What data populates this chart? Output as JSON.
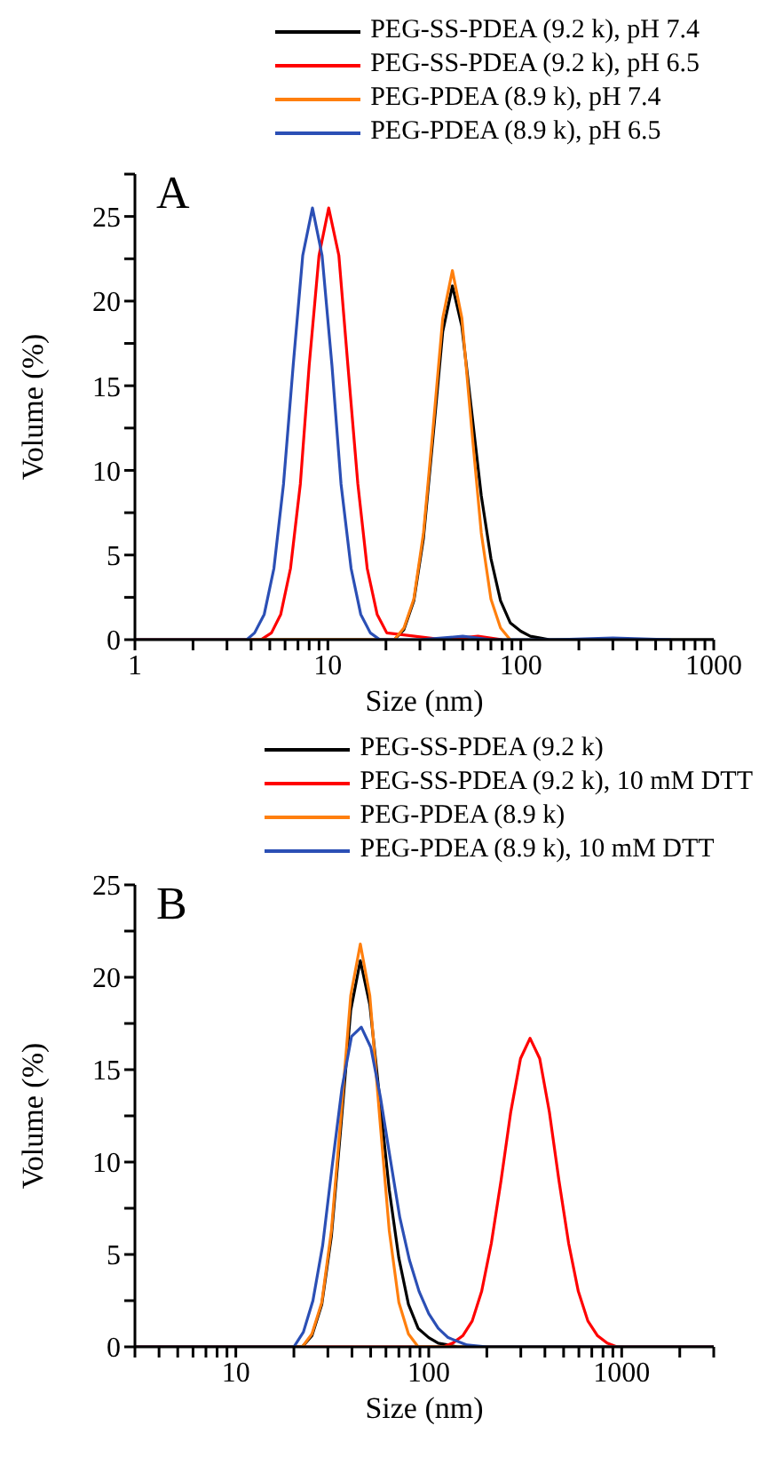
{
  "chart_data": [
    {
      "type": "line",
      "xlabel": "Size (nm)",
      "ylabel": "Volume (%)",
      "annotations": [
        "A"
      ],
      "log": "x",
      "marker": "none",
      "line_style": "solid",
      "legend": "top",
      "xlim": [
        1,
        1000
      ],
      "ylim": [
        0,
        27.5
      ],
      "xticks": [
        1,
        {
          "value": 2,
          "label": null
        },
        {
          "value": 3,
          "label": null
        },
        {
          "value": 4,
          "label": null
        },
        {
          "value": 5,
          "label": null
        },
        {
          "value": 6,
          "label": null
        },
        {
          "value": 7,
          "label": null
        },
        {
          "value": 8,
          "label": null
        },
        {
          "value": 9,
          "label": null
        },
        10,
        {
          "value": 20,
          "label": null
        },
        {
          "value": 30,
          "label": null
        },
        {
          "value": 40,
          "label": null
        },
        {
          "value": 50,
          "label": null
        },
        {
          "value": 60,
          "label": null
        },
        {
          "value": 70,
          "label": null
        },
        {
          "value": 80,
          "label": null
        },
        {
          "value": 90,
          "label": null
        },
        100,
        {
          "value": 200,
          "label": null
        },
        {
          "value": 300,
          "label": null
        },
        {
          "value": 400,
          "label": null
        },
        {
          "value": 500,
          "label": null
        },
        {
          "value": 600,
          "label": null
        },
        {
          "value": 700,
          "label": null
        },
        {
          "value": 800,
          "label": null
        },
        {
          "value": 900,
          "label": null
        },
        1000
      ],
      "yticks": [
        0,
        {
          "value": 2.5,
          "label": null
        },
        5,
        {
          "value": 7.5,
          "label": null
        },
        10,
        {
          "value": 12.5,
          "label": null
        },
        15,
        {
          "value": 17.5,
          "label": null
        },
        20,
        {
          "value": 22.5,
          "label": null
        },
        25,
        {
          "value": 27.5,
          "label": null
        }
      ],
      "series": [
        {
          "name": "PEG-SS-PDEA (9.2 k), pH 7.4",
          "color": "#000000",
          "x": [
            1,
            20,
            22.1,
            24.8,
            27.9,
            31.3,
            35.1,
            39.4,
            44.2,
            49.5,
            55.6,
            62.4,
            70.0,
            78.5,
            88.1,
            100,
            112,
            126,
            141,
            1000
          ],
          "values": [
            0,
            0,
            0,
            0.6,
            2.3,
            6.0,
            12.0,
            18.2,
            20.9,
            18.5,
            13.5,
            8.5,
            4.8,
            2.3,
            1.0,
            0.5,
            0.2,
            0.1,
            0,
            0
          ]
        },
        {
          "name": "PEG-SS-PDEA (9.2 k), pH 6.5",
          "color": "#ff0000",
          "x": [
            1,
            4.5,
            5.1,
            5.7,
            6.4,
            7.2,
            8.0,
            9.0,
            10.1,
            11.4,
            12.7,
            14.3,
            16.0,
            18.0,
            20.2,
            40,
            60,
            80
          ],
          "values": [
            0,
            0,
            0.4,
            1.5,
            4.2,
            9.2,
            16.2,
            22.7,
            25.5,
            22.7,
            16.2,
            9.2,
            4.2,
            1.5,
            0.4,
            0,
            0.2,
            0
          ]
        },
        {
          "name": "PEG-PDEA (8.9 k), pH 7.4",
          "color": "#ff7f0e",
          "x": [
            1,
            22.1,
            24.8,
            27.9,
            31.3,
            35.1,
            39.4,
            44.2,
            49.5,
            55.6,
            62.4,
            70.0,
            78.5,
            88.1
          ],
          "values": [
            0,
            0,
            0.7,
            2.4,
            6.3,
            12.5,
            19.0,
            21.8,
            19.0,
            12.5,
            6.3,
            2.4,
            0.7,
            0
          ]
        },
        {
          "name": "PEG-PDEA (8.9 k), pH 6.5",
          "color": "#2b4fb5",
          "x": [
            1,
            3.8,
            4.17,
            4.68,
            5.25,
            5.89,
            6.61,
            7.41,
            8.32,
            9.33,
            10.5,
            11.7,
            13.2,
            14.8,
            16.6,
            18.6,
            30,
            50,
            70,
            150,
            300,
            600
          ],
          "values": [
            0,
            0,
            0.4,
            1.5,
            4.2,
            9.2,
            16.2,
            22.7,
            25.5,
            22.7,
            16.2,
            9.2,
            4.2,
            1.5,
            0.4,
            0,
            0,
            0.2,
            0,
            0,
            0.1,
            0
          ]
        }
      ]
    },
    {
      "type": "line",
      "xlabel": "Size (nm)",
      "ylabel": "Volume (%)",
      "annotations": [
        "B"
      ],
      "log": "x",
      "marker": "none",
      "line_style": "solid",
      "legend": "top",
      "xlim": [
        3,
        3000
      ],
      "ylim": [
        0,
        25
      ],
      "xticks": [
        {
          "value": 3,
          "label": null
        },
        {
          "value": 4,
          "label": null
        },
        {
          "value": 5,
          "label": null
        },
        {
          "value": 6,
          "label": null
        },
        {
          "value": 7,
          "label": null
        },
        {
          "value": 8,
          "label": null
        },
        {
          "value": 9,
          "label": null
        },
        10,
        {
          "value": 20,
          "label": null
        },
        {
          "value": 30,
          "label": null
        },
        {
          "value": 40,
          "label": null
        },
        {
          "value": 50,
          "label": null
        },
        {
          "value": 60,
          "label": null
        },
        {
          "value": 70,
          "label": null
        },
        {
          "value": 80,
          "label": null
        },
        {
          "value": 90,
          "label": null
        },
        100,
        {
          "value": 200,
          "label": null
        },
        {
          "value": 300,
          "label": null
        },
        {
          "value": 400,
          "label": null
        },
        {
          "value": 500,
          "label": null
        },
        {
          "value": 600,
          "label": null
        },
        {
          "value": 700,
          "label": null
        },
        {
          "value": 800,
          "label": null
        },
        {
          "value": 900,
          "label": null
        },
        1000,
        {
          "value": 2000,
          "label": null
        },
        {
          "value": 3000,
          "label": null
        }
      ],
      "yticks": [
        0,
        {
          "value": 2.5,
          "label": null
        },
        5,
        {
          "value": 7.5,
          "label": null
        },
        10,
        {
          "value": 12.5,
          "label": null
        },
        15,
        {
          "value": 17.5,
          "label": null
        },
        20,
        {
          "value": 22.5,
          "label": null
        },
        25
      ],
      "series": [
        {
          "name": "PEG-SS-PDEA (9.2 k)",
          "color": "#000000",
          "x": [
            3,
            20,
            22.1,
            24.8,
            27.9,
            31.3,
            35.1,
            39.4,
            44.2,
            49.5,
            55.6,
            62.4,
            70.0,
            78.5,
            88.1,
            100,
            112,
            126,
            141,
            3000
          ],
          "values": [
            0,
            0,
            0,
            0.6,
            2.3,
            6.0,
            12.0,
            18.2,
            20.9,
            18.5,
            13.5,
            8.5,
            4.8,
            2.3,
            1.0,
            0.5,
            0.2,
            0.1,
            0,
            0
          ]
        },
        {
          "name": "PEG-SS-PDEA (9.2 k), 10 mM DTT",
          "color": "#ff0000",
          "x": [
            3,
            119,
            133,
            150,
            168,
            188,
            211,
            237,
            266,
            299,
            335,
            376,
            422,
            473,
            531,
            596,
            668,
            750,
            841,
            944,
            3000
          ],
          "values": [
            0,
            0,
            0.2,
            0.6,
            1.4,
            3.0,
            5.6,
            9.0,
            12.7,
            15.6,
            16.7,
            15.6,
            12.7,
            9.0,
            5.6,
            3.0,
            1.4,
            0.6,
            0.2,
            0,
            0
          ]
        },
        {
          "name": "PEG-PDEA (8.9 k)",
          "color": "#ff7f0e",
          "x": [
            3,
            22.1,
            24.8,
            27.9,
            31.3,
            35.1,
            39.4,
            44.2,
            49.5,
            55.6,
            62.4,
            70.0,
            78.5,
            88.1,
            3000
          ],
          "values": [
            0,
            0,
            0.7,
            2.4,
            6.3,
            12.5,
            19.0,
            21.8,
            19.0,
            12.5,
            6.3,
            2.4,
            0.7,
            0,
            0
          ]
        },
        {
          "name": "PEG-PDEA (8.9 k), 10 mM DTT",
          "color": "#2b4fb5",
          "x": [
            3,
            20.0,
            22.4,
            25.1,
            28.2,
            31.6,
            35.5,
            39.8,
            44.7,
            50.1,
            56.2,
            63.1,
            70.8,
            79.4,
            89.1,
            100,
            112,
            126,
            158,
            200,
            3000
          ],
          "values": [
            0,
            0,
            0.8,
            2.5,
            5.5,
            9.8,
            14.0,
            16.8,
            17.3,
            16.2,
            13.5,
            10.2,
            7.0,
            4.7,
            3.0,
            1.8,
            1.0,
            0.5,
            0.1,
            0,
            0
          ]
        }
      ]
    }
  ]
}
